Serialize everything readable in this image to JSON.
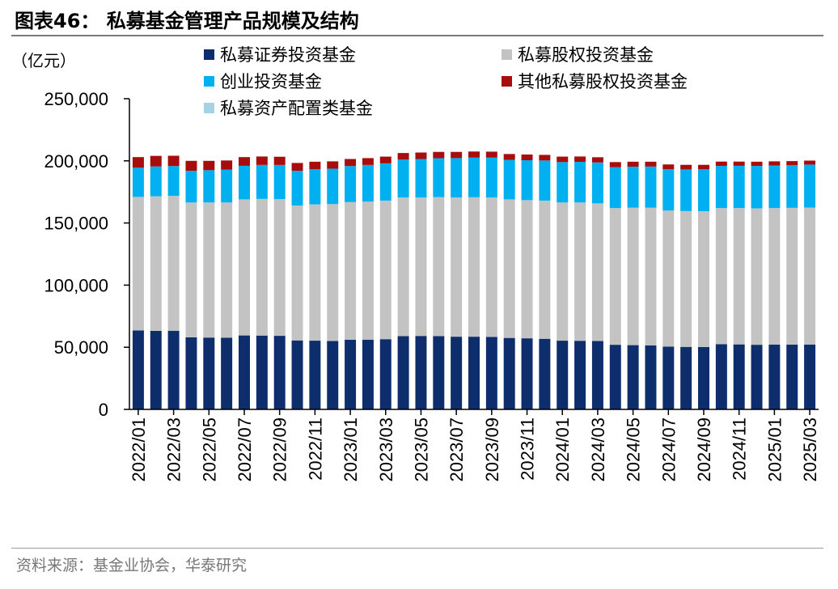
{
  "header": {
    "title": "图表46：  私募基金管理产品规模及结构"
  },
  "footer": {
    "source": "资料来源：基金业协会，华泰研究"
  },
  "colors": {
    "securities": "#0d2d6c",
    "equity": "#c3c3c3",
    "venture": "#00b0f0",
    "other_equity": "#a80d0d",
    "asset_allocation": "#a6d2e6"
  },
  "chart_data": {
    "type": "bar",
    "stacked": true,
    "title": "私募基金管理产品规模及结构",
    "unit_label": "（亿元）",
    "xlabel": "",
    "ylabel": "",
    "ylim": [
      0,
      250000
    ],
    "yticks": [
      0,
      50000,
      100000,
      150000,
      200000,
      250000
    ],
    "ytick_labels": [
      "0",
      "50,000",
      "100,000",
      "150,000",
      "200,000",
      "250,000"
    ],
    "grid": false,
    "legend_position": "top",
    "x": [
      "2022/01",
      "2022/02",
      "2022/03",
      "2022/04",
      "2022/05",
      "2022/06",
      "2022/07",
      "2022/08",
      "2022/09",
      "2022/10",
      "2022/11",
      "2022/12",
      "2023/01",
      "2023/02",
      "2023/03",
      "2023/04",
      "2023/05",
      "2023/06",
      "2023/07",
      "2023/08",
      "2023/09",
      "2023/10",
      "2023/11",
      "2023/12",
      "2024/01",
      "2024/02",
      "2024/03",
      "2024/04",
      "2024/05",
      "2024/06",
      "2024/07",
      "2024/08",
      "2024/09",
      "2024/10",
      "2024/11",
      "2024/12",
      "2025/01",
      "2025/02",
      "2025/03"
    ],
    "x_tick_labels": [
      "2022/01",
      "2022/03",
      "2022/05",
      "2022/07",
      "2022/09",
      "2022/11",
      "2023/01",
      "2023/03",
      "2023/05",
      "2023/07",
      "2023/09",
      "2023/11",
      "2024/01",
      "2024/03",
      "2024/05",
      "2024/07",
      "2024/09",
      "2024/11",
      "2025/01",
      "2025/03"
    ],
    "series": [
      {
        "name": "私募证券投资基金",
        "color_key": "securities",
        "values": [
          63500,
          63200,
          63300,
          58000,
          57800,
          57700,
          59500,
          59400,
          59200,
          55500,
          55300,
          55000,
          56000,
          56100,
          56500,
          59000,
          59100,
          59000,
          58500,
          58500,
          58300,
          57500,
          57200,
          56800,
          55300,
          55200,
          55000,
          52000,
          51700,
          51500,
          50500,
          50300,
          50200,
          52500,
          52300,
          52000,
          52200,
          52100,
          52200
        ]
      },
      {
        "name": "私募股权投资基金",
        "color_key": "equity",
        "values": [
          107500,
          108300,
          108500,
          108500,
          108700,
          108800,
          109500,
          110000,
          110000,
          108500,
          109700,
          110200,
          110800,
          111100,
          111500,
          111500,
          111400,
          111800,
          112000,
          112200,
          112200,
          111500,
          111200,
          111200,
          111200,
          111300,
          110800,
          110000,
          110600,
          110800,
          109500,
          109300,
          109300,
          109500,
          109700,
          109800,
          109800,
          110100,
          110200
        ]
      },
      {
        "name": "创业投资基金",
        "color_key": "venture",
        "values": [
          23500,
          24000,
          24000,
          25500,
          26000,
          26500,
          27000,
          27300,
          27500,
          28000,
          28200,
          28500,
          29000,
          29500,
          30000,
          30500,
          31000,
          31300,
          31700,
          31900,
          32100,
          31800,
          32100,
          32300,
          32500,
          32700,
          32900,
          32900,
          33000,
          33100,
          33300,
          33500,
          33700,
          33900,
          34000,
          34100,
          34300,
          34400,
          34600
        ]
      },
      {
        "name": "其他私募股权投资基金",
        "color_key": "other_equity",
        "values": [
          8500,
          8500,
          8300,
          8000,
          7500,
          7300,
          7000,
          6800,
          6600,
          6300,
          6100,
          5900,
          5700,
          5500,
          5400,
          5300,
          5200,
          5100,
          5000,
          4900,
          4800,
          4700,
          4600,
          4500,
          4400,
          4300,
          4200,
          4100,
          4000,
          3900,
          3800,
          3700,
          3600,
          3500,
          3400,
          3400,
          3300,
          3200,
          3200
        ]
      },
      {
        "name": "私募资产配置类基金",
        "color_key": "asset_allocation",
        "values": [
          0,
          0,
          0,
          0,
          0,
          0,
          0,
          0,
          0,
          0,
          0,
          0,
          0,
          0,
          0,
          0,
          0,
          0,
          0,
          0,
          0,
          0,
          0,
          0,
          0,
          0,
          0,
          0,
          0,
          0,
          0,
          0,
          0,
          0,
          0,
          0,
          0,
          0,
          0
        ]
      }
    ]
  }
}
